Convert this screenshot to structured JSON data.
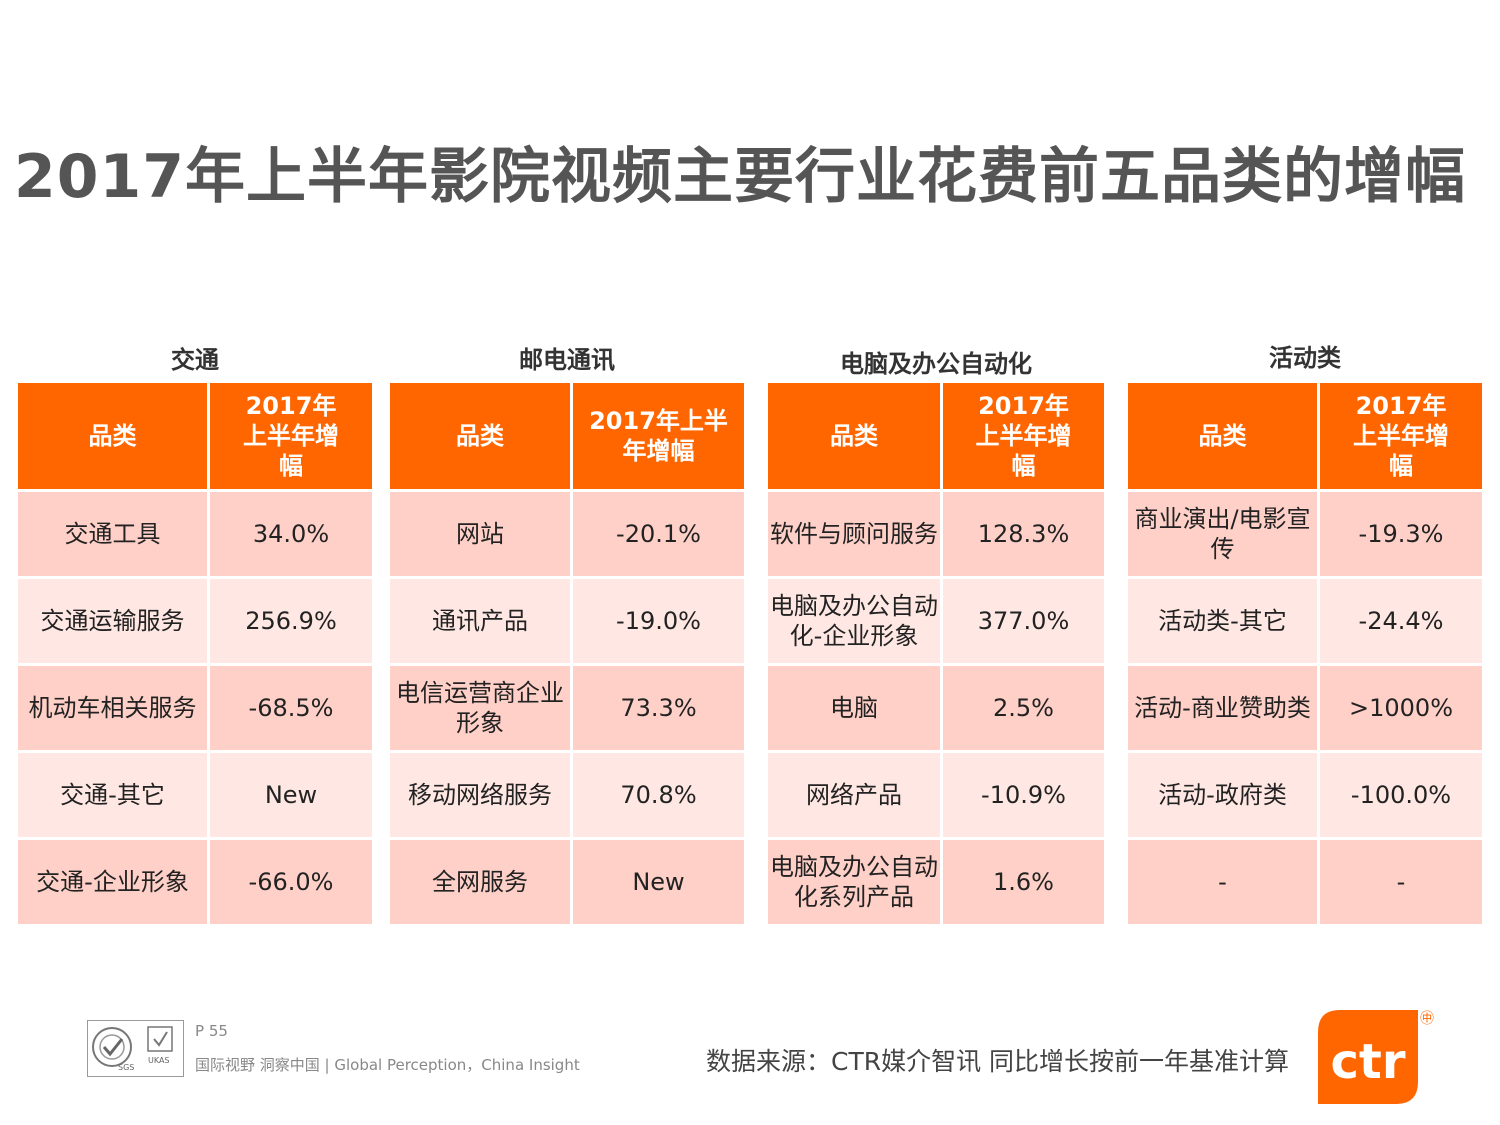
{
  "page": {
    "title": "2017年上半年影院视频主要行业花费前五品类的增幅"
  },
  "tables": [
    {
      "title": "交通",
      "col1": "品类",
      "col2": "2017年上半年增幅",
      "rows": [
        {
          "category": "交通工具",
          "growth": "34.0%"
        },
        {
          "category": "交通运输服务",
          "growth": "256.9%"
        },
        {
          "category": "机动车相关服务",
          "growth": "-68.5%"
        },
        {
          "category": "交通-其它",
          "growth": "New"
        },
        {
          "category": "交通-企业形象",
          "growth": "-66.0%"
        }
      ]
    },
    {
      "title": "邮电通讯",
      "col1": "品类",
      "col2": "2017年上半年增幅",
      "rows": [
        {
          "category": "网站",
          "growth": "-20.1%"
        },
        {
          "category": "通讯产品",
          "growth": "-19.0%"
        },
        {
          "category": "电信运营商企业形象",
          "growth": "73.3%"
        },
        {
          "category": "移动网络服务",
          "growth": "70.8%"
        },
        {
          "category": "全网服务",
          "growth": "New"
        }
      ]
    },
    {
      "title": "电脑及办公自动化",
      "col1": "品类",
      "col2": "2017年上半年增幅",
      "rows": [
        {
          "category": "软件与顾问服务",
          "growth": "128.3%"
        },
        {
          "category": "电脑及办公自动化-企业形象",
          "growth": "377.0%"
        },
        {
          "category": "电脑",
          "growth": "2.5%"
        },
        {
          "category": "网络产品",
          "growth": "-10.9%"
        },
        {
          "category": "电脑及办公自动化系列产品",
          "growth": "1.6%"
        }
      ]
    },
    {
      "title": "活动类",
      "col1": "品类",
      "col2": "2017年上半年增幅",
      "rows": [
        {
          "category": "商业演出/电影宣传",
          "growth": "-19.3%"
        },
        {
          "category": "活动类-其它",
          "growth": "-24.4%"
        },
        {
          "category": "活动-商业赞助类",
          "growth": ">1000%"
        },
        {
          "category": "活动-政府类",
          "growth": "-100.0%"
        },
        {
          "category": "-",
          "growth": "-"
        }
      ]
    }
  ],
  "footer": {
    "page_number": "P 55",
    "tagline": "国际视野  洞察中国 |  Global Perception，China Insight",
    "source": "数据来源：CTR媒介智讯    同比增长按前一年基准计算",
    "brand": "ctr",
    "brand_mark": "㊥",
    "cert_label_1": "SGS",
    "cert_label_2": "UKAS"
  },
  "colors": {
    "header": "#ff6600",
    "row_a": "#ffd0c8",
    "row_b": "#ffe8e3",
    "title": "#555555"
  }
}
